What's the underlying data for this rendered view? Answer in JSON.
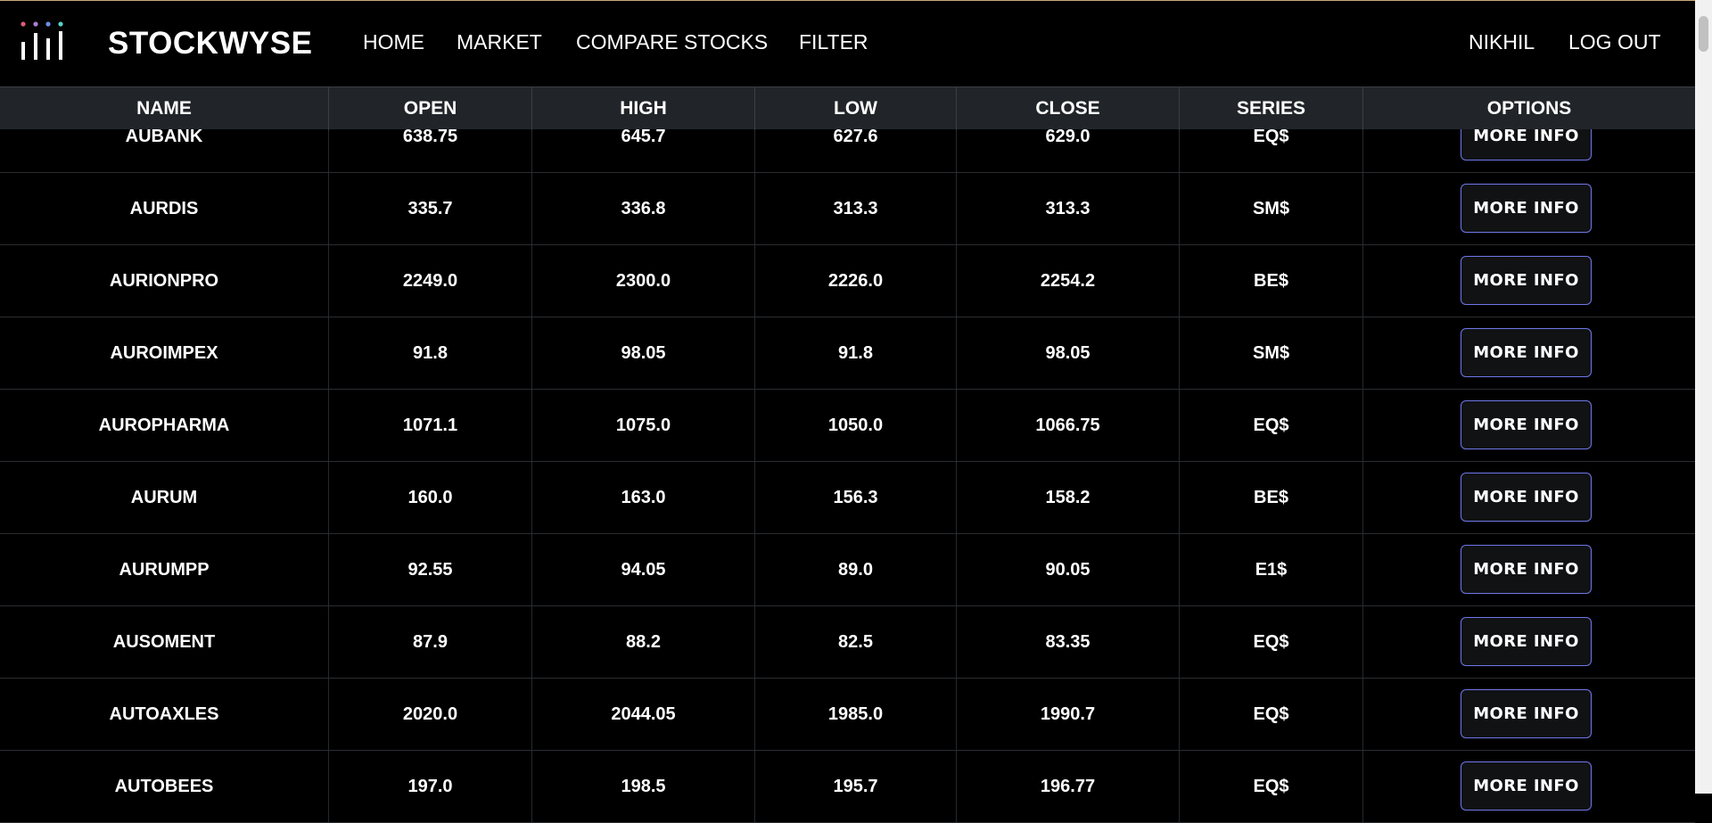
{
  "brand": {
    "name": "STOCKWYSE",
    "logo_colors": [
      "#e05a7a",
      "#b07cd6",
      "#6b8ee6",
      "#5ad1c8"
    ]
  },
  "nav": {
    "links": [
      "HOME",
      "MARKET",
      "COMPARE STOCKS",
      "FILTER"
    ],
    "user": "NIKHIL",
    "logout": "LOG OUT"
  },
  "table": {
    "headers": [
      "NAME",
      "OPEN",
      "HIGH",
      "LOW",
      "CLOSE",
      "SERIES",
      "OPTIONS"
    ],
    "button_label": "MORE INFO",
    "rows": [
      [
        "AUBANK",
        "638.75",
        "645.7",
        "627.6",
        "629.0",
        "EQ$"
      ],
      [
        "AURDIS",
        "335.7",
        "336.8",
        "313.3",
        "313.3",
        "SM$"
      ],
      [
        "AURIONPRO",
        "2249.0",
        "2300.0",
        "2226.0",
        "2254.2",
        "BE$"
      ],
      [
        "AUROIMPEX",
        "91.8",
        "98.05",
        "91.8",
        "98.05",
        "SM$"
      ],
      [
        "AUROPHARMA",
        "1071.1",
        "1075.0",
        "1050.0",
        "1066.75",
        "EQ$"
      ],
      [
        "AURUM",
        "160.0",
        "163.0",
        "156.3",
        "158.2",
        "BE$"
      ],
      [
        "AURUMPP",
        "92.55",
        "94.05",
        "89.0",
        "90.05",
        "E1$"
      ],
      [
        "AUSOMENT",
        "87.9",
        "88.2",
        "82.5",
        "83.35",
        "EQ$"
      ],
      [
        "AUTOAXLES",
        "2020.0",
        "2044.05",
        "1985.0",
        "1990.7",
        "EQ$"
      ],
      [
        "AUTOBEES",
        "197.0",
        "198.5",
        "195.7",
        "196.77",
        "EQ$"
      ]
    ]
  },
  "colors": {
    "background": "#000000",
    "header_bg": "#212529",
    "button_border": "#6f77e8"
  }
}
